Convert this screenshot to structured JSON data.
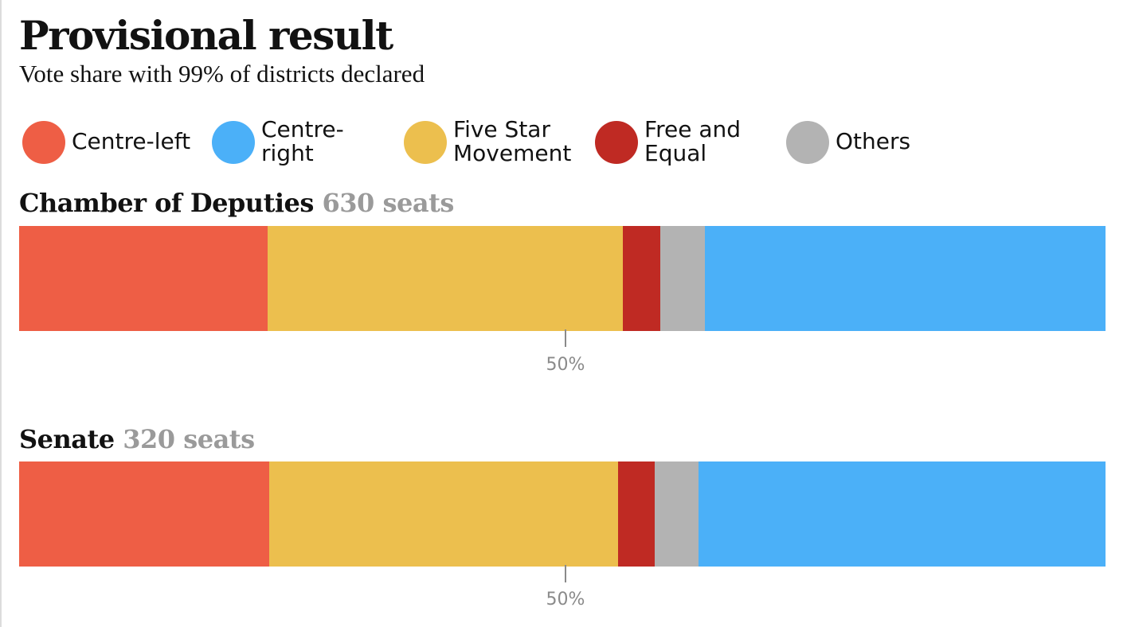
{
  "header": {
    "title": "Provisional result",
    "subtitle": "Vote share with 99% of districts declared"
  },
  "legend": [
    {
      "id": "centre-left",
      "label": "Centre-left",
      "color": "#ee5e45"
    },
    {
      "id": "centre-right",
      "label": "Centre-right",
      "color": "#4bb0f8"
    },
    {
      "id": "five-star",
      "label": "Five Star Movement",
      "color": "#ecbf4e"
    },
    {
      "id": "free-equal",
      "label": "Free and Equal",
      "color": "#bf2a23"
    },
    {
      "id": "others",
      "label": "Others",
      "color": "#b3b3b3"
    }
  ],
  "chart_data": {
    "type": "bar",
    "subtype": "stacked-horizontal-100",
    "title": "Provisional result",
    "subtitle": "Vote share with 99% of districts declared",
    "xlim": [
      0,
      100
    ],
    "reference_line": {
      "value": 50,
      "label": "50%"
    },
    "charts": [
      {
        "id": "chamber",
        "name": "Chamber of Deputies",
        "seats_label": "630 seats",
        "segments": [
          {
            "party": "Centre-left",
            "value": 22.9,
            "color": "#ee5e45"
          },
          {
            "party": "Five Star Movement",
            "value": 32.7,
            "color": "#ecbf4e"
          },
          {
            "party": "Free and Equal",
            "value": 3.4,
            "color": "#bf2a23"
          },
          {
            "party": "Others",
            "value": 4.1,
            "color": "#b3b3b3"
          },
          {
            "party": "Centre-right",
            "value": 36.9,
            "color": "#4bb0f8"
          }
        ]
      },
      {
        "id": "senate",
        "name": "Senate",
        "seats_label": "320 seats",
        "segments": [
          {
            "party": "Centre-left",
            "value": 23.0,
            "color": "#ee5e45"
          },
          {
            "party": "Five Star Movement",
            "value": 32.1,
            "color": "#ecbf4e"
          },
          {
            "party": "Free and Equal",
            "value": 3.4,
            "color": "#bf2a23"
          },
          {
            "party": "Others",
            "value": 4.0,
            "color": "#b3b3b3"
          },
          {
            "party": "Centre-right",
            "value": 37.5,
            "color": "#4bb0f8"
          }
        ]
      }
    ]
  }
}
